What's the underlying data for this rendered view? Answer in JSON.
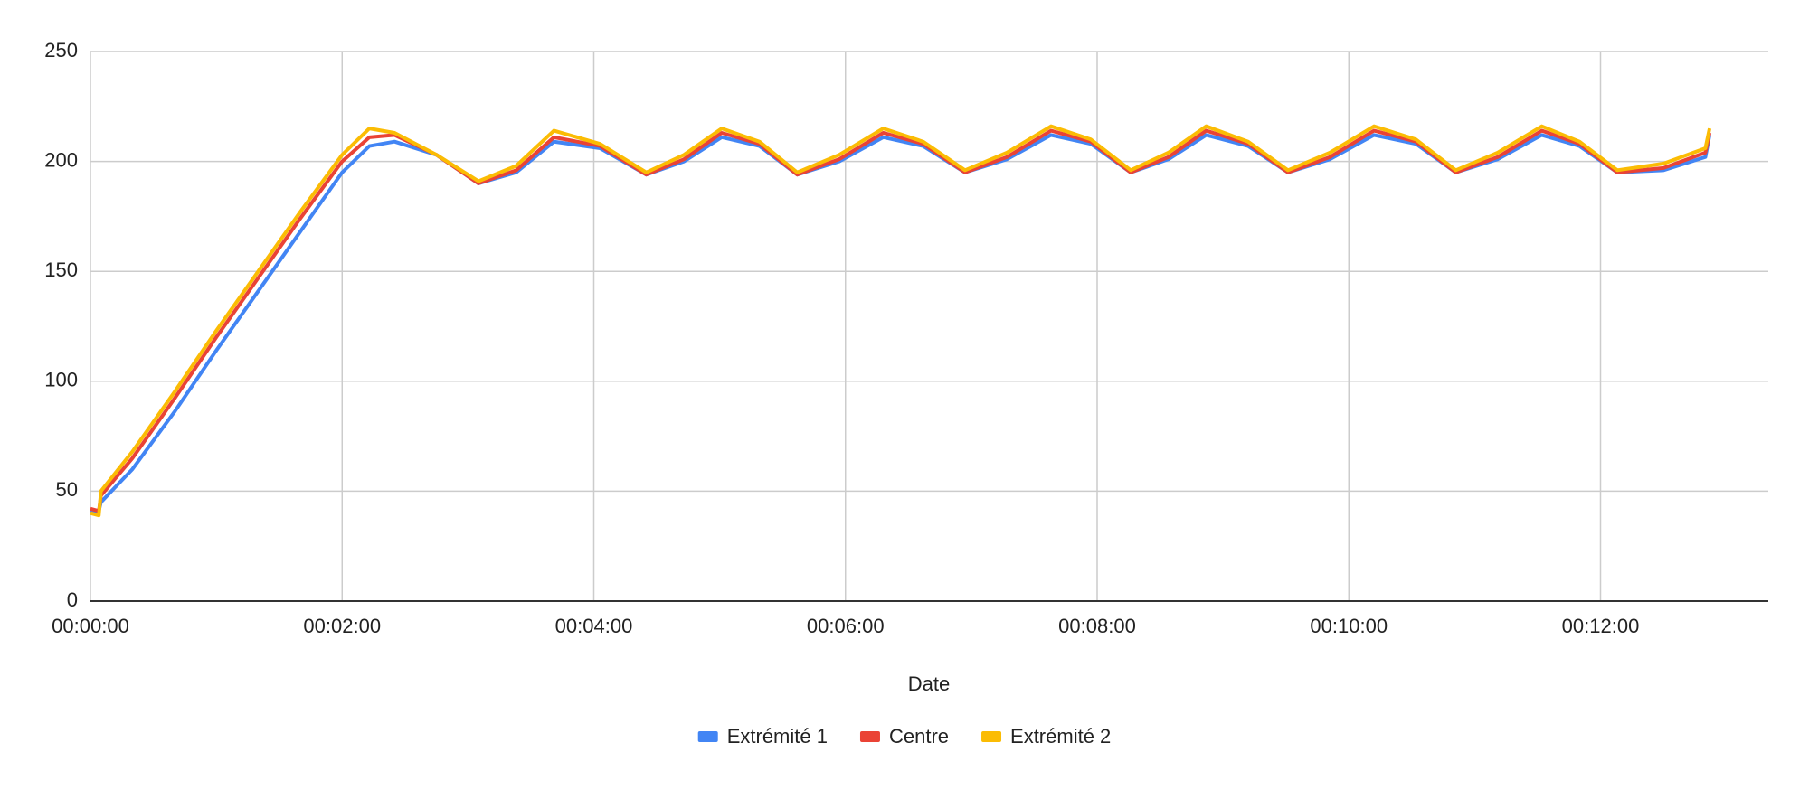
{
  "chart_data": {
    "type": "line",
    "x_label": "Date",
    "x": [
      0,
      4,
      5,
      20,
      40,
      60,
      80,
      100,
      120,
      133,
      145,
      165,
      185,
      203,
      221,
      243,
      265,
      283,
      301,
      319,
      337,
      357,
      378,
      397,
      417,
      437,
      458,
      477,
      496,
      514,
      532,
      552,
      571,
      591,
      612,
      632,
      651,
      671,
      692,
      710,
      728,
      750,
      770,
      772
    ],
    "series": [
      {
        "name": "Extrémité 1",
        "color": "#4285f4",
        "values": [
          41,
          41,
          45,
          60,
          86,
          114,
          141,
          168,
          195,
          207,
          209,
          203,
          190,
          195,
          209,
          206,
          194,
          200,
          211,
          207,
          194,
          200,
          211,
          207,
          195,
          201,
          212,
          208,
          195,
          201,
          212,
          207,
          195,
          201,
          212,
          208,
          195,
          201,
          212,
          207,
          195,
          196,
          202,
          212
        ]
      },
      {
        "name": "Centre",
        "color": "#ea4335",
        "values": [
          42,
          41,
          48,
          65,
          92,
          120,
          147,
          174,
          200,
          211,
          212,
          203,
          190,
          196,
          211,
          207,
          194,
          201,
          213,
          208,
          194,
          201,
          213,
          208,
          195,
          202,
          214,
          209,
          195,
          202,
          214,
          208,
          195,
          202,
          214,
          209,
          195,
          202,
          214,
          208,
          195,
          197,
          204,
          213
        ]
      },
      {
        "name": "Extrémité 2",
        "color": "#fbbc04",
        "values": [
          40,
          39,
          50,
          68,
          95,
          123,
          150,
          177,
          203,
          215,
          213,
          203,
          191,
          198,
          214,
          208,
          195,
          203,
          215,
          209,
          195,
          203,
          215,
          209,
          196,
          204,
          216,
          210,
          196,
          204,
          216,
          209,
          196,
          204,
          216,
          210,
          196,
          204,
          216,
          209,
          196,
          199,
          206,
          215
        ]
      }
    ],
    "xlim": [
      0,
      800
    ],
    "xticks": [
      {
        "value": 0,
        "label": "00:00:00"
      },
      {
        "value": 120,
        "label": "00:02:00"
      },
      {
        "value": 240,
        "label": "00:04:00"
      },
      {
        "value": 360,
        "label": "00:06:00"
      },
      {
        "value": 480,
        "label": "00:08:00"
      },
      {
        "value": 600,
        "label": "00:10:00"
      },
      {
        "value": 720,
        "label": "00:12:00"
      }
    ],
    "ylim": [
      0,
      250
    ],
    "yticks": [
      0,
      50,
      100,
      150,
      200,
      250
    ],
    "grid": true,
    "legend": "bottom"
  }
}
